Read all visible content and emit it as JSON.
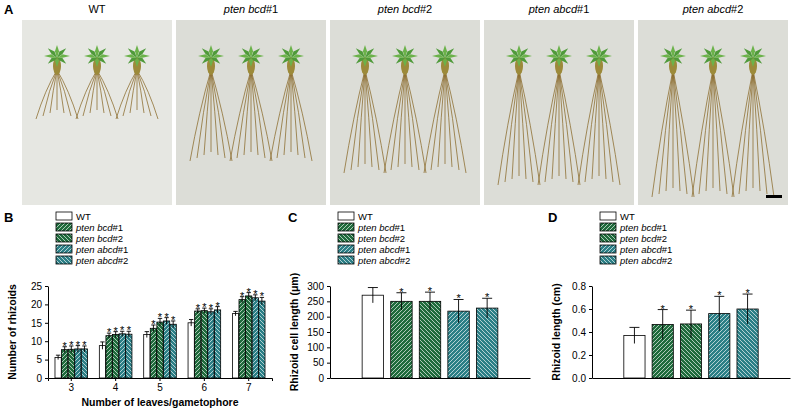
{
  "photo_panel": {
    "title": "A",
    "labels": [
      "WT",
      "pten bcd#1",
      "pten bcd#2",
      "pten abcd#1",
      "pten abcd#2"
    ]
  },
  "chart_data": [
    {
      "type": "bar",
      "title": "B",
      "x_label": "Number of leaves/gametophore",
      "y_label": "Number of rhizoids",
      "categories": [
        3,
        4,
        5,
        6,
        7
      ],
      "ylim": [
        0,
        25
      ],
      "yticks": [
        0,
        5,
        10,
        15,
        20,
        25
      ],
      "legend": "top-left",
      "series": [
        {
          "name": "WT",
          "color": "#ffffff",
          "values": [
            5.6,
            8.8,
            11.8,
            15.0,
            17.5
          ],
          "errors": [
            0.6,
            1.0,
            0.8,
            0.9,
            0.6
          ]
        },
        {
          "name": "pten bcd#1",
          "color": "#1f6b3c",
          "values": [
            7.7,
            11.5,
            13.5,
            18.2,
            21.3
          ],
          "errors": [
            0.8,
            0.7,
            0.9,
            0.6,
            0.8
          ],
          "significance": [
            "*",
            "*",
            "*",
            "*",
            "*"
          ]
        },
        {
          "name": "pten bcd#2",
          "color": "#1f6b3c",
          "values": [
            7.8,
            11.8,
            15.2,
            18.3,
            22.3
          ],
          "errors": [
            0.9,
            0.8,
            1.0,
            0.7,
            0.9
          ],
          "significance": [
            "*",
            "*",
            "*",
            "*",
            "*"
          ]
        },
        {
          "name": "pten abcd#1",
          "color": "#2b7f86",
          "values": [
            7.9,
            12.0,
            15.5,
            18.0,
            21.8
          ],
          "errors": [
            0.9,
            0.7,
            0.9,
            0.8,
            0.8
          ],
          "significance": [
            "*",
            "*",
            "*",
            "*",
            "*"
          ]
        },
        {
          "name": "pten abcd#2",
          "color": "#2b7f86",
          "values": [
            7.9,
            11.9,
            14.6,
            18.5,
            20.9
          ],
          "errors": [
            0.8,
            0.8,
            0.9,
            0.9,
            1.0
          ],
          "significance": [
            "*",
            "*",
            "*",
            "*",
            "*"
          ]
        }
      ]
    },
    {
      "type": "bar",
      "title": "C",
      "y_label": "Rhizoid cell length (μm)",
      "ylim": [
        0,
        300
      ],
      "yticks": [
        0,
        50,
        100,
        150,
        200,
        250,
        300
      ],
      "legend": "top-left",
      "tick_labels": "y",
      "series": [
        {
          "name": "WT",
          "color": "#ffffff",
          "values": [
            270
          ],
          "errors": [
            25
          ]
        },
        {
          "name": "pten bcd#1",
          "color": "#1f6b3c",
          "values": [
            250
          ],
          "errors": [
            28
          ],
          "significance": [
            "*"
          ]
        },
        {
          "name": "pten bcd#2",
          "color": "#1f6b3c",
          "values": [
            250
          ],
          "errors": [
            30
          ],
          "significance": [
            "*"
          ]
        },
        {
          "name": "pten abcd#1",
          "color": "#2b7f86",
          "values": [
            218
          ],
          "errors": [
            38
          ],
          "significance": [
            "*"
          ]
        },
        {
          "name": "pten abcd#2",
          "color": "#2b7f86",
          "values": [
            228
          ],
          "errors": [
            32
          ],
          "significance": [
            "*"
          ]
        }
      ]
    },
    {
      "type": "bar",
      "title": "D",
      "y_label": "Rhizoid length (cm)",
      "ylim": [
        0,
        0.8
      ],
      "yticks": [
        {
          "value": 0,
          "label": "0.0"
        },
        0.2,
        0.4,
        0.6,
        0.8
      ],
      "legend": "top-left",
      "tick_labels": "y",
      "series": [
        {
          "name": "WT",
          "color": "#ffffff",
          "values": [
            0.37
          ],
          "errors": [
            0.07
          ]
        },
        {
          "name": "pten bcd#1",
          "color": "#1f6b3c",
          "values": [
            0.465
          ],
          "errors": [
            0.13
          ],
          "significance": [
            "*"
          ]
        },
        {
          "name": "pten bcd#2",
          "color": "#1f6b3c",
          "values": [
            0.47
          ],
          "errors": [
            0.12
          ],
          "significance": [
            "*"
          ]
        },
        {
          "name": "pten abcd#1",
          "color": "#2b7f86",
          "values": [
            0.56
          ],
          "errors": [
            0.15
          ],
          "significance": [
            "*"
          ]
        },
        {
          "name": "pten abcd#2",
          "color": "#2b7f86",
          "values": [
            0.6
          ],
          "errors": [
            0.13
          ],
          "significance": [
            "*"
          ]
        }
      ]
    }
  ]
}
